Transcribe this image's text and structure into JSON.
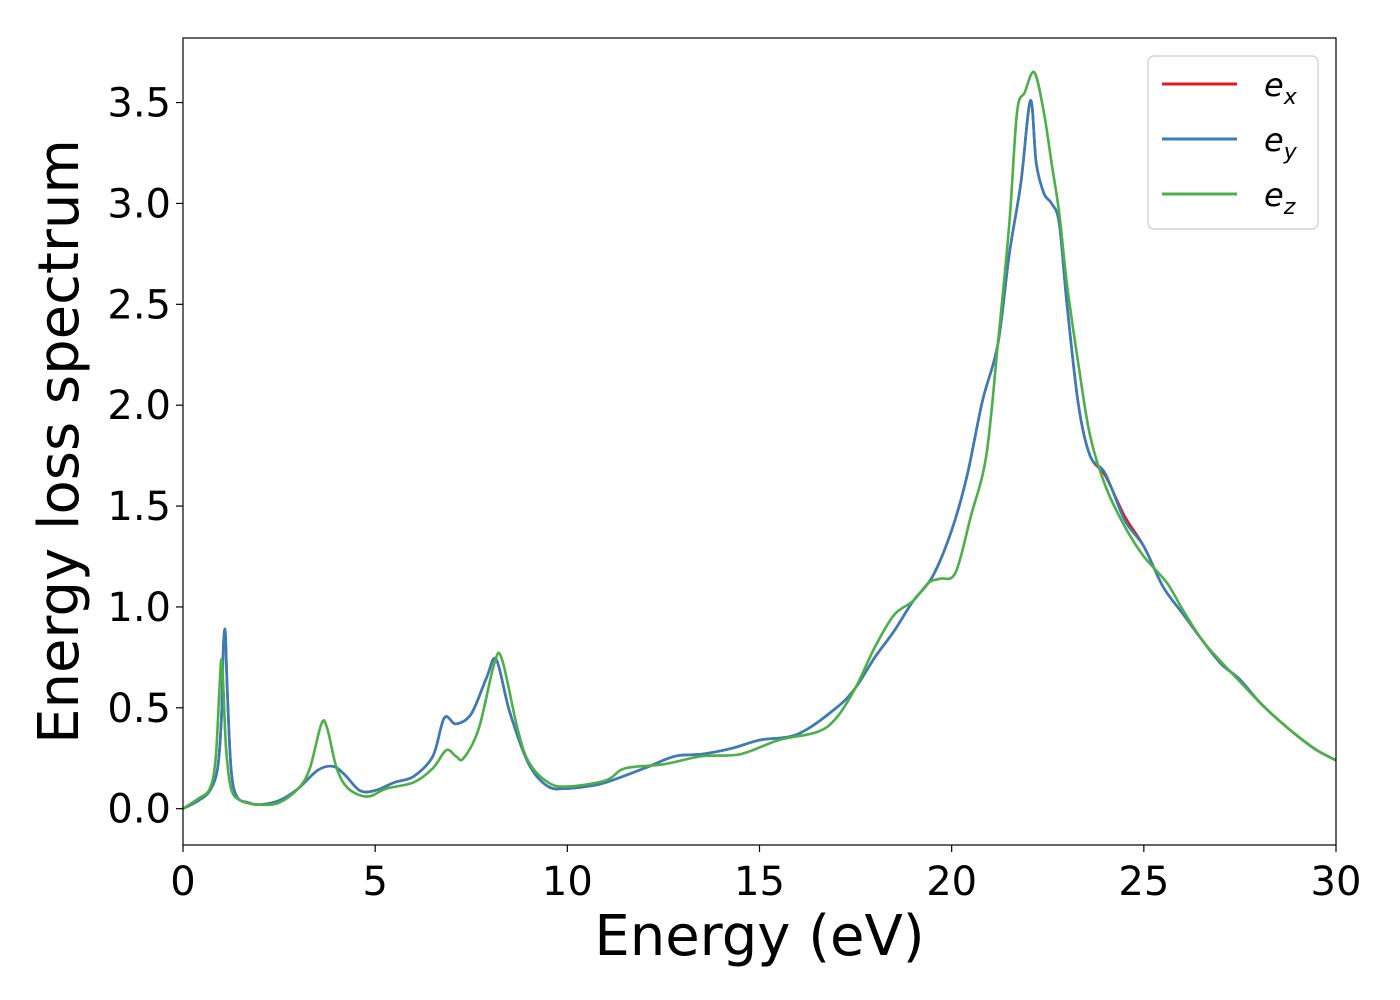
{
  "chart_data": {
    "type": "line",
    "title": "",
    "xlabel": "Energy (eV)",
    "ylabel": "Energy loss spectrum",
    "xlim": [
      0,
      30
    ],
    "ylim": [
      -0.18,
      3.82
    ],
    "xticks": [
      0,
      5,
      10,
      15,
      20,
      25,
      30
    ],
    "xtick_labels": [
      "0",
      "5",
      "10",
      "15",
      "20",
      "25",
      "30"
    ],
    "yticks": [
      0.0,
      0.5,
      1.0,
      1.5,
      2.0,
      2.5,
      3.0,
      3.5
    ],
    "ytick_labels": [
      "0.0",
      "0.5",
      "1.0",
      "1.5",
      "2.0",
      "2.5",
      "3.0",
      "3.5"
    ],
    "grid": false,
    "legend": {
      "position": "top-right",
      "entries": [
        {
          "base": "e",
          "sub": "x",
          "color": "#e41a1c"
        },
        {
          "base": "e",
          "sub": "y",
          "color": "#377eb8"
        },
        {
          "base": "e",
          "sub": "z",
          "color": "#4daf4a"
        }
      ]
    },
    "series": [
      {
        "name": "e_x",
        "color": "#e41a1c",
        "x": [
          0,
          0.4,
          0.7,
          0.9,
          1.0,
          1.05,
          1.1,
          1.15,
          1.25,
          1.4,
          1.7,
          2.0,
          2.5,
          3.0,
          3.5,
          3.9,
          4.2,
          4.6,
          5.0,
          5.5,
          6.0,
          6.5,
          6.8,
          7.1,
          7.5,
          7.9,
          8.15,
          8.5,
          9.0,
          9.5,
          10.0,
          10.5,
          11.0,
          12.0,
          12.8,
          13.5,
          14.3,
          15.0,
          16.0,
          17.0,
          17.5,
          18.0,
          18.5,
          19.0,
          19.5,
          20.0,
          20.4,
          20.8,
          21.2,
          21.5,
          21.8,
          22.05,
          22.2,
          22.4,
          22.6,
          22.8,
          23.0,
          23.3,
          23.6,
          24.0,
          24.5,
          25.0,
          25.5,
          26.0,
          26.5,
          27.0,
          27.5,
          28.0,
          28.5,
          29.0,
          29.5,
          30.0
        ],
        "values": [
          0.0,
          0.04,
          0.09,
          0.2,
          0.45,
          0.8,
          0.87,
          0.6,
          0.2,
          0.06,
          0.03,
          0.02,
          0.04,
          0.1,
          0.19,
          0.21,
          0.17,
          0.09,
          0.09,
          0.13,
          0.16,
          0.26,
          0.45,
          0.42,
          0.47,
          0.65,
          0.74,
          0.48,
          0.22,
          0.11,
          0.1,
          0.11,
          0.13,
          0.2,
          0.26,
          0.27,
          0.3,
          0.34,
          0.37,
          0.5,
          0.6,
          0.75,
          0.88,
          1.03,
          1.15,
          1.38,
          1.65,
          2.02,
          2.3,
          2.75,
          3.1,
          3.51,
          3.2,
          3.05,
          3.0,
          2.9,
          2.5,
          2.0,
          1.75,
          1.65,
          1.45,
          1.3,
          1.1,
          0.97,
          0.84,
          0.72,
          0.64,
          0.53,
          0.44,
          0.36,
          0.29,
          0.24
        ]
      },
      {
        "name": "e_y",
        "color": "#377eb8",
        "x": [
          0,
          0.4,
          0.7,
          0.9,
          1.0,
          1.05,
          1.1,
          1.15,
          1.25,
          1.4,
          1.7,
          2.0,
          2.5,
          3.0,
          3.5,
          3.9,
          4.2,
          4.6,
          5.0,
          5.5,
          6.0,
          6.5,
          6.8,
          7.1,
          7.5,
          7.9,
          8.15,
          8.5,
          9.0,
          9.5,
          10.0,
          10.5,
          11.0,
          12.0,
          12.8,
          13.5,
          14.3,
          15.0,
          16.0,
          17.0,
          17.5,
          18.0,
          18.5,
          19.0,
          19.5,
          20.0,
          20.4,
          20.8,
          21.2,
          21.5,
          21.8,
          22.05,
          22.2,
          22.4,
          22.6,
          22.8,
          23.0,
          23.3,
          23.6,
          24.0,
          24.5,
          25.0,
          25.5,
          26.0,
          26.5,
          27.0,
          27.5,
          28.0,
          28.5,
          29.0,
          29.5,
          30.0
        ],
        "values": [
          0.0,
          0.04,
          0.09,
          0.2,
          0.45,
          0.8,
          0.88,
          0.6,
          0.2,
          0.06,
          0.03,
          0.02,
          0.04,
          0.1,
          0.19,
          0.21,
          0.17,
          0.09,
          0.09,
          0.13,
          0.16,
          0.26,
          0.45,
          0.42,
          0.47,
          0.65,
          0.74,
          0.48,
          0.22,
          0.11,
          0.1,
          0.11,
          0.13,
          0.2,
          0.26,
          0.27,
          0.3,
          0.34,
          0.37,
          0.5,
          0.6,
          0.75,
          0.88,
          1.03,
          1.15,
          1.38,
          1.65,
          2.02,
          2.3,
          2.75,
          3.1,
          3.51,
          3.2,
          3.05,
          3.0,
          2.9,
          2.5,
          2.0,
          1.75,
          1.66,
          1.43,
          1.3,
          1.1,
          0.97,
          0.84,
          0.72,
          0.64,
          0.53,
          0.44,
          0.36,
          0.29,
          0.24
        ]
      },
      {
        "name": "e_z",
        "color": "#4daf4a",
        "x": [
          0,
          0.4,
          0.7,
          0.85,
          0.95,
          1.0,
          1.05,
          1.12,
          1.25,
          1.5,
          2.0,
          2.5,
          3.0,
          3.3,
          3.6,
          3.75,
          4.0,
          4.3,
          4.8,
          5.3,
          6.0,
          6.5,
          6.85,
          7.1,
          7.3,
          7.7,
          8.1,
          8.3,
          8.7,
          9.0,
          9.5,
          10.0,
          11.0,
          11.5,
          12.5,
          13.5,
          14.5,
          15.5,
          16.5,
          17.0,
          17.5,
          18.0,
          18.5,
          19.0,
          19.4,
          19.7,
          20.1,
          20.5,
          20.9,
          21.2,
          21.5,
          21.7,
          21.9,
          22.15,
          22.4,
          22.6,
          22.8,
          23.0,
          23.3,
          23.6,
          24.0,
          24.5,
          25.0,
          25.6,
          26.0,
          26.5,
          27.0,
          27.5,
          28.0,
          28.5,
          29.0,
          29.5,
          30.0
        ],
        "values": [
          0.0,
          0.05,
          0.1,
          0.25,
          0.6,
          0.74,
          0.6,
          0.3,
          0.1,
          0.04,
          0.02,
          0.03,
          0.1,
          0.2,
          0.42,
          0.4,
          0.2,
          0.1,
          0.06,
          0.1,
          0.13,
          0.2,
          0.29,
          0.26,
          0.25,
          0.4,
          0.72,
          0.74,
          0.4,
          0.23,
          0.13,
          0.11,
          0.14,
          0.2,
          0.22,
          0.26,
          0.27,
          0.34,
          0.38,
          0.45,
          0.6,
          0.8,
          0.96,
          1.03,
          1.12,
          1.14,
          1.17,
          1.45,
          1.75,
          2.3,
          2.9,
          3.45,
          3.55,
          3.65,
          3.45,
          3.2,
          2.95,
          2.6,
          2.2,
          1.85,
          1.6,
          1.4,
          1.25,
          1.12,
          0.99,
          0.84,
          0.73,
          0.63,
          0.53,
          0.44,
          0.36,
          0.29,
          0.24
        ]
      }
    ]
  }
}
